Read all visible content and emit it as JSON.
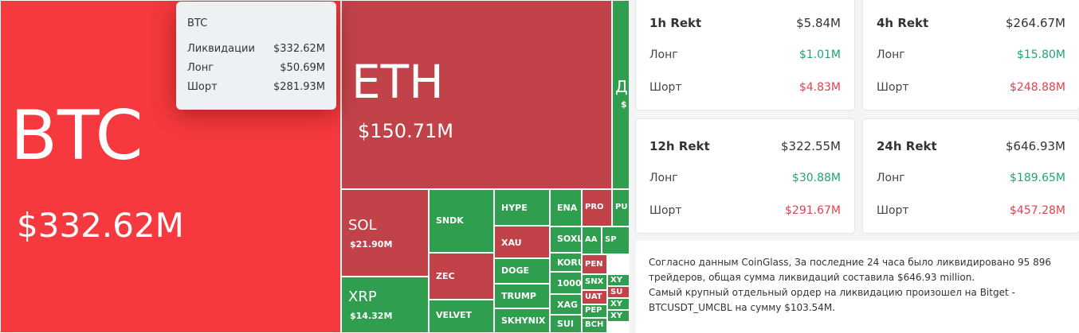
{
  "treemap": {
    "tiles": [
      {
        "label": "BTC",
        "value": "$332.62M"
      },
      {
        "label": "ETH",
        "value": "$150.71M"
      },
      {
        "label": "Д",
        "value": "$"
      },
      {
        "label": "SOL",
        "value": "$21.90M"
      },
      {
        "label": "XRP",
        "value": "$14.32M"
      },
      {
        "label": "SNDK"
      },
      {
        "label": "ZEC"
      },
      {
        "label": "VELVET"
      },
      {
        "label": "HYPE"
      },
      {
        "label": "XAU"
      },
      {
        "label": "DOGE"
      },
      {
        "label": "TRUMP"
      },
      {
        "label": "SKHYNIX"
      },
      {
        "label": "ENA"
      },
      {
        "label": "SOXL"
      },
      {
        "label": "KORU"
      },
      {
        "label": "1000I"
      },
      {
        "label": "XAG"
      },
      {
        "label": "SUI"
      },
      {
        "label": "PRO"
      },
      {
        "label": "PU"
      },
      {
        "label": "AA"
      },
      {
        "label": "SP"
      },
      {
        "label": "PEN"
      },
      {
        "label": "SNX"
      },
      {
        "label": "UAT"
      },
      {
        "label": "PEP"
      },
      {
        "label": "BCH"
      },
      {
        "label": "XY"
      },
      {
        "label": "SU"
      },
      {
        "label": "XY"
      },
      {
        "label": "XY"
      }
    ]
  },
  "tooltip": {
    "title": "BTC",
    "rows": [
      [
        "Ликвидации",
        "$332.62M"
      ],
      [
        "Лонг",
        "$50.69M"
      ],
      [
        "Шорт",
        "$281.93M"
      ]
    ]
  },
  "cards": [
    {
      "title": "1h Rekt",
      "total": "$5.84M",
      "long_label": "Лонг",
      "long": "$1.01M",
      "short_label": "Шорт",
      "short": "$4.83M"
    },
    {
      "title": "4h Rekt",
      "total": "$264.67M",
      "long_label": "Лонг",
      "long": "$15.80M",
      "short_label": "Шорт",
      "short": "$248.88M"
    },
    {
      "title": "12h Rekt",
      "total": "$322.55M",
      "long_label": "Лонг",
      "long": "$30.88M",
      "short_label": "Шорт",
      "short": "$291.67M"
    },
    {
      "title": "24h Rekt",
      "total": "$646.93M",
      "long_label": "Лонг",
      "long": "$189.65M",
      "short_label": "Шорт",
      "short": "$457.28M"
    }
  ],
  "summary": [
    "Согласно данным CoinGlass, За последние 24 часа было ликвидировано 95 896 трейдеров, общая сумма ликвидаций составила $646.93 million.",
    "Самый крупный отдельный ордер на ликвидацию произошел на Bitget - BTCUSDT_UMCBL на сумму $103.54M."
  ]
}
